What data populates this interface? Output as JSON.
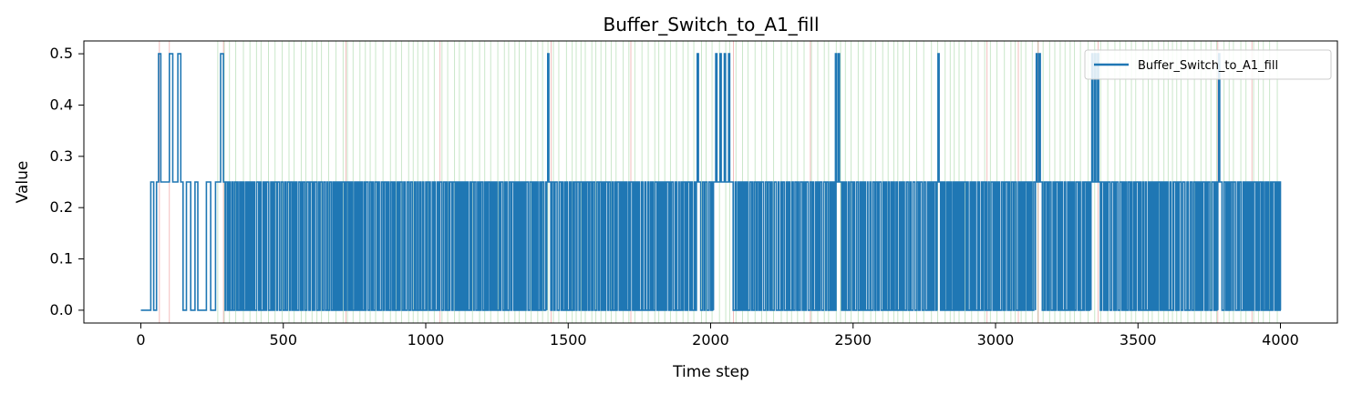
{
  "chart_data": {
    "type": "line",
    "title": "Buffer_Switch_to_A1_fill",
    "xlabel": "Time step",
    "ylabel": "Value",
    "xlim": [
      -200,
      4200
    ],
    "ylim": [
      -0.025,
      0.525
    ],
    "x_ticks": [
      0,
      500,
      1000,
      1500,
      2000,
      2500,
      3000,
      3500,
      4000
    ],
    "y_ticks": [
      0.0,
      0.1,
      0.2,
      0.3,
      0.4,
      0.5
    ],
    "x_tick_labels": [
      "0",
      "500",
      "1000",
      "1500",
      "2000",
      "2500",
      "3000",
      "3500",
      "4000"
    ],
    "y_tick_labels": [
      "0.0",
      "0.1",
      "0.2",
      "0.3",
      "0.4",
      "0.5"
    ],
    "grid": false,
    "legend_position": "top-right",
    "series": [
      {
        "name": "Buffer_Switch_to_A1_fill",
        "color": "#1f77b4",
        "baseline_value": 0.25,
        "segments": [
          {
            "x": [
              0,
              35,
              35,
              45,
              45,
              55,
              55,
              62,
              62,
              70,
              70,
              100,
              100,
              112,
              112,
              130,
              130,
              140,
              140,
              148,
              148,
              160,
              160,
              175,
              175,
              190,
              190,
              200,
              200,
              230,
              230,
              245,
              245,
              262,
              262,
              280,
              280,
              290,
              290
            ],
            "y": [
              0,
              0,
              0.25,
              0.25,
              0,
              0,
              0.25,
              0.25,
              0.5,
              0.5,
              0.25,
              0.25,
              0.5,
              0.5,
              0.25,
              0.25,
              0.5,
              0.5,
              0.25,
              0.25,
              0,
              0,
              0.25,
              0.25,
              0,
              0,
              0.25,
              0.25,
              0,
              0,
              0.25,
              0.25,
              0,
              0,
              0.25,
              0.25,
              0.5,
              0.5,
              0.25
            ]
          }
        ],
        "dense_ranges": [
          [
            290,
            1425
          ],
          [
            1435,
            1950
          ],
          [
            1960,
            2010
          ],
          [
            2075,
            2440
          ],
          [
            2455,
            2795
          ],
          [
            2805,
            3140
          ],
          [
            3160,
            3335
          ],
          [
            3365,
            3780
          ],
          [
            3790,
            4000
          ]
        ],
        "dense_amplitude": [
          0,
          0.25
        ],
        "spikes": [
          {
            "x": 1430,
            "y": 0.5
          },
          {
            "x": 1955,
            "y": 0.5
          },
          {
            "x": 2020,
            "y": 0.5
          },
          {
            "x": 2035,
            "y": 0.5
          },
          {
            "x": 2050,
            "y": 0.5
          },
          {
            "x": 2065,
            "y": 0.5
          },
          {
            "x": 2440,
            "y": 0.5
          },
          {
            "x": 2450,
            "y": 0.5
          },
          {
            "x": 2800,
            "y": 0.5
          },
          {
            "x": 3145,
            "y": 0.5
          },
          {
            "x": 3155,
            "y": 0.5
          },
          {
            "x": 3340,
            "y": 0.5
          },
          {
            "x": 3350,
            "y": 0.5
          },
          {
            "x": 3360,
            "y": 0.5
          },
          {
            "x": 3785,
            "y": 0.5
          }
        ]
      }
    ],
    "background_markers": {
      "green_color": "#2ca02c",
      "red_color": "#d62728",
      "green_range": [
        270,
        4000
      ],
      "red_x": [
        65,
        100,
        290,
        720,
        1050,
        1440,
        1720,
        2080,
        2350,
        2970,
        3080,
        3150,
        3360,
        3780,
        3900
      ]
    }
  }
}
